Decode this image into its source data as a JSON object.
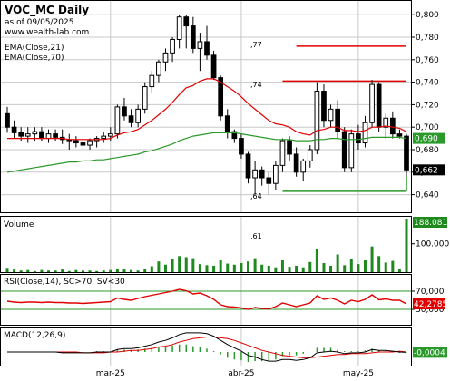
{
  "header": {
    "title": "VOC_MC Daily",
    "asof": "as of 09/05/2025",
    "site": "www.wealth-lab.com",
    "ema1": "EMA(Close,21)",
    "ema2": "EMA(Close,70)"
  },
  "panes": {
    "volume_label": "Volume",
    "rsi_label": "RSI(Close,14), SC>70, SV<30",
    "macd_label": "MACD(12,26,9)"
  },
  "chart_data": {
    "type": "candlestick",
    "price_axis": {
      "ylim": [
        0.63,
        0.805
      ],
      "ticks": [
        "0,800",
        "0,780",
        "0,760",
        "0,740",
        "0,720",
        "0,700",
        "0,680",
        "0,660",
        "0,640"
      ]
    },
    "price_tags": {
      "last_ema": "0,690",
      "last_close": "0,662"
    },
    "price_annotations": [
      {
        "text": ",77"
      },
      {
        "text": ",74"
      },
      {
        "text": ",64"
      },
      {
        "text": ",61"
      }
    ],
    "levels": [
      {
        "value": 0.772,
        "color": "#e00000",
        "from_bar": 42,
        "to_bar": 58
      },
      {
        "value": 0.741,
        "color": "#e00000",
        "from_bar": 40,
        "to_bar": 58
      },
      {
        "value": 0.643,
        "color": "#2a9a2a",
        "from_bar": 40,
        "to_bar": 58
      }
    ],
    "x_labels": [
      {
        "text": "mar-25",
        "bar": 15
      },
      {
        "text": "abr-25",
        "bar": 34
      },
      {
        "text": "may-25",
        "bar": 51
      }
    ],
    "candles": [
      [
        0.712,
        0.718,
        0.695,
        0.7
      ],
      [
        0.7,
        0.706,
        0.69,
        0.695
      ],
      [
        0.695,
        0.7,
        0.688,
        0.692
      ],
      [
        0.692,
        0.7,
        0.686,
        0.694
      ],
      [
        0.694,
        0.7,
        0.688,
        0.696
      ],
      [
        0.696,
        0.7,
        0.688,
        0.69
      ],
      [
        0.69,
        0.698,
        0.686,
        0.694
      ],
      [
        0.694,
        0.698,
        0.688,
        0.691
      ],
      [
        0.691,
        0.698,
        0.685,
        0.689
      ],
      [
        0.689,
        0.694,
        0.68,
        0.688
      ],
      [
        0.688,
        0.692,
        0.682,
        0.686
      ],
      [
        0.686,
        0.69,
        0.68,
        0.684
      ],
      [
        0.684,
        0.69,
        0.68,
        0.688
      ],
      [
        0.688,
        0.692,
        0.682,
        0.69
      ],
      [
        0.69,
        0.696,
        0.686,
        0.692
      ],
      [
        0.692,
        0.7,
        0.688,
        0.694
      ],
      [
        0.694,
        0.72,
        0.69,
        0.718
      ],
      [
        0.718,
        0.726,
        0.706,
        0.71
      ],
      [
        0.71,
        0.716,
        0.7,
        0.704
      ],
      [
        0.704,
        0.72,
        0.7,
        0.716
      ],
      [
        0.716,
        0.74,
        0.712,
        0.736
      ],
      [
        0.736,
        0.75,
        0.73,
        0.746
      ],
      [
        0.746,
        0.76,
        0.74,
        0.758
      ],
      [
        0.758,
        0.77,
        0.75,
        0.766
      ],
      [
        0.766,
        0.78,
        0.758,
        0.778
      ],
      [
        0.778,
        0.8,
        0.77,
        0.798
      ],
      [
        0.798,
        0.8,
        0.77,
        0.79
      ],
      [
        0.79,
        0.798,
        0.766,
        0.77
      ],
      [
        0.77,
        0.784,
        0.75,
        0.776
      ],
      [
        0.776,
        0.79,
        0.76,
        0.764
      ],
      [
        0.764,
        0.768,
        0.742,
        0.744
      ],
      [
        0.744,
        0.746,
        0.706,
        0.71
      ],
      [
        0.71,
        0.716,
        0.69,
        0.696
      ],
      [
        0.696,
        0.698,
        0.686,
        0.69
      ],
      [
        0.69,
        0.694,
        0.672,
        0.676
      ],
      [
        0.676,
        0.678,
        0.65,
        0.655
      ],
      [
        0.655,
        0.67,
        0.64,
        0.662
      ],
      [
        0.662,
        0.665,
        0.648,
        0.655
      ],
      [
        0.655,
        0.66,
        0.64,
        0.65
      ],
      [
        0.65,
        0.67,
        0.644,
        0.666
      ],
      [
        0.666,
        0.69,
        0.66,
        0.688
      ],
      [
        0.688,
        0.692,
        0.67,
        0.676
      ],
      [
        0.676,
        0.682,
        0.656,
        0.66
      ],
      [
        0.66,
        0.672,
        0.652,
        0.67
      ],
      [
        0.67,
        0.684,
        0.664,
        0.68
      ],
      [
        0.68,
        0.74,
        0.676,
        0.732
      ],
      [
        0.732,
        0.738,
        0.7,
        0.706
      ],
      [
        0.706,
        0.72,
        0.7,
        0.716
      ],
      [
        0.716,
        0.724,
        0.69,
        0.696
      ],
      [
        0.696,
        0.7,
        0.66,
        0.664
      ],
      [
        0.664,
        0.698,
        0.66,
        0.694
      ],
      [
        0.694,
        0.702,
        0.68,
        0.686
      ],
      [
        0.686,
        0.71,
        0.682,
        0.704
      ],
      [
        0.704,
        0.742,
        0.7,
        0.738
      ],
      [
        0.738,
        0.74,
        0.696,
        0.7
      ],
      [
        0.7,
        0.712,
        0.69,
        0.708
      ],
      [
        0.708,
        0.714,
        0.69,
        0.694
      ],
      [
        0.694,
        0.698,
        0.69,
        0.692
      ],
      [
        0.692,
        0.694,
        0.656,
        0.662
      ]
    ],
    "ema21": [
      0.69,
      0.69,
      0.69,
      0.69,
      0.69,
      0.69,
      0.69,
      0.69,
      0.69,
      0.689,
      0.689,
      0.689,
      0.689,
      0.689,
      0.689,
      0.69,
      0.693,
      0.695,
      0.696,
      0.698,
      0.702,
      0.706,
      0.711,
      0.716,
      0.722,
      0.729,
      0.735,
      0.737,
      0.741,
      0.743,
      0.743,
      0.74,
      0.736,
      0.732,
      0.727,
      0.721,
      0.716,
      0.711,
      0.706,
      0.703,
      0.702,
      0.7,
      0.696,
      0.694,
      0.693,
      0.697,
      0.698,
      0.7,
      0.7,
      0.697,
      0.697,
      0.696,
      0.697,
      0.7,
      0.7,
      0.701,
      0.7,
      0.699,
      0.696
    ],
    "ema70": [
      0.66,
      0.661,
      0.662,
      0.663,
      0.664,
      0.665,
      0.666,
      0.667,
      0.668,
      0.669,
      0.669,
      0.67,
      0.67,
      0.671,
      0.671,
      0.672,
      0.673,
      0.674,
      0.675,
      0.676,
      0.678,
      0.679,
      0.681,
      0.683,
      0.685,
      0.688,
      0.69,
      0.692,
      0.693,
      0.694,
      0.695,
      0.695,
      0.695,
      0.695,
      0.694,
      0.693,
      0.692,
      0.691,
      0.69,
      0.689,
      0.689,
      0.689,
      0.688,
      0.688,
      0.688,
      0.689,
      0.689,
      0.69,
      0.69,
      0.689,
      0.689,
      0.689,
      0.69,
      0.691,
      0.691,
      0.691,
      0.691,
      0.691,
      0.69
    ],
    "volume": {
      "tags": {
        "max": "188.081",
        "tick": "100.000"
      },
      "values": [
        8,
        5,
        3,
        4,
        2,
        4,
        3,
        3,
        5,
        2,
        4,
        3,
        3,
        2,
        3,
        4,
        6,
        5,
        4,
        3,
        6,
        11,
        20,
        14,
        25,
        30,
        28,
        26,
        15,
        13,
        12,
        22,
        16,
        14,
        17,
        20,
        26,
        14,
        12,
        9,
        22,
        10,
        12,
        9,
        19,
        44,
        17,
        12,
        33,
        13,
        25,
        15,
        22,
        48,
        30,
        18,
        21,
        6,
        100
      ],
      "max_value": 188081
    },
    "rsi": {
      "ticks": [
        "70,000",
        "30,000"
      ],
      "tag": "42,2785",
      "values": [
        48,
        46,
        45,
        46,
        46,
        45,
        46,
        45,
        45,
        44,
        44,
        43,
        44,
        45,
        46,
        47,
        55,
        52,
        50,
        54,
        58,
        61,
        64,
        67,
        70,
        74,
        71,
        64,
        66,
        60,
        52,
        40,
        36,
        35,
        33,
        30,
        34,
        32,
        31,
        36,
        44,
        40,
        36,
        40,
        44,
        60,
        52,
        55,
        50,
        42,
        50,
        47,
        52,
        62,
        51,
        53,
        50,
        50,
        42
      ]
    },
    "macd": {
      "tag": "-0,0004",
      "macd": [
        0,
        0,
        0,
        0,
        0,
        0,
        0,
        0,
        -0.001,
        -0.001,
        -0.001,
        -0.001,
        -0.001,
        0,
        0,
        0,
        0.003,
        0.004,
        0.004,
        0.005,
        0.007,
        0.009,
        0.012,
        0.014,
        0.017,
        0.021,
        0.023,
        0.023,
        0.023,
        0.022,
        0.019,
        0.014,
        0.009,
        0.005,
        0.001,
        -0.004,
        -0.006,
        -0.009,
        -0.011,
        -0.011,
        -0.009,
        -0.009,
        -0.01,
        -0.009,
        -0.007,
        -0.001,
        0.0,
        0.001,
        0.0,
        -0.002,
        -0.001,
        -0.001,
        0.0,
        0.003,
        0.002,
        0.002,
        0.001,
        0.0,
        -0.0004
      ],
      "signal": [
        0,
        0,
        0,
        0,
        0,
        0,
        0,
        0,
        0,
        0,
        0,
        -0.001,
        -0.001,
        -0.001,
        -0.001,
        0,
        0,
        0.001,
        0.002,
        0.002,
        0.003,
        0.004,
        0.006,
        0.007,
        0.009,
        0.012,
        0.014,
        0.016,
        0.017,
        0.018,
        0.018,
        0.017,
        0.016,
        0.014,
        0.011,
        0.008,
        0.005,
        0.002,
        0.0,
        -0.002,
        -0.004,
        -0.005,
        -0.006,
        -0.007,
        -0.007,
        -0.006,
        -0.005,
        -0.004,
        -0.003,
        -0.003,
        -0.002,
        -0.002,
        -0.002,
        -0.001,
        0.0,
        0.0,
        0.0,
        0.001,
        0.0
      ]
    }
  },
  "colors": {
    "up": "#ffffff",
    "down": "#000000",
    "ema21": "#e00000",
    "ema70": "#2a9a2a",
    "volume": "#1e8a1e",
    "rsi": "#e00000",
    "rsi_band": "#2a9a2a",
    "macd": "#000000",
    "signal": "#e00000",
    "hist": "#2a9a2a",
    "grid": "#c8c8c8"
  }
}
